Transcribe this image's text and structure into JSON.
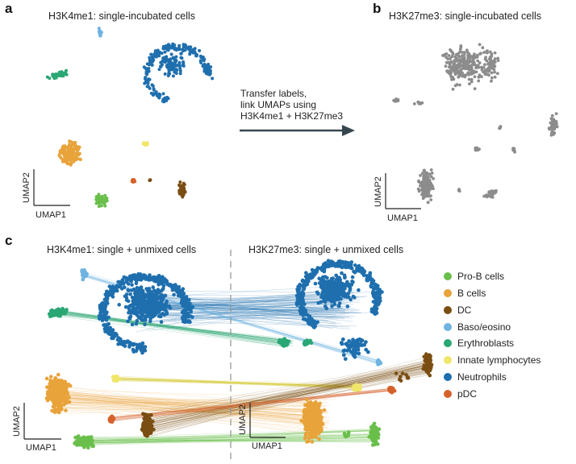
{
  "panel_a": {
    "letter": "a",
    "title": "H3K4me1: single-incubated cells",
    "xlabel": "UMAP1",
    "ylabel": "UMAP2"
  },
  "panel_b": {
    "letter": "b",
    "title": "H3K27me3: single-incubated cells",
    "xlabel": "UMAP1",
    "ylabel": "UMAP2"
  },
  "transfer": {
    "line1": "Transfer labels,",
    "line2": "link UMAPs using",
    "line3": "H3K4me1 + H3K27me3"
  },
  "panel_c": {
    "letter": "c",
    "title_left": "H3K4me1: single + unmixed cells",
    "title_right": "H3K27me3: single + unmixed cells",
    "xlabel": "UMAP1",
    "ylabel": "UMAP2"
  },
  "legend": [
    {
      "label": "Pro-B cells",
      "color": "#6abf4b"
    },
    {
      "label": "B cells",
      "color": "#e8a33a"
    },
    {
      "label": "DC",
      "color": "#7a4e12"
    },
    {
      "label": "Baso/eosino",
      "color": "#6fb3e0"
    },
    {
      "label": "Erythroblasts",
      "color": "#2aa774"
    },
    {
      "label": "Innate lymphocytes",
      "color": "#f0e66a"
    },
    {
      "label": "Neutrophils",
      "color": "#1f6fae"
    },
    {
      "label": "pDC",
      "color": "#d6612a"
    }
  ],
  "colors": {
    "gray_points": "#8c8c8c",
    "arrow": "#37474f",
    "divider": "#999999"
  }
}
